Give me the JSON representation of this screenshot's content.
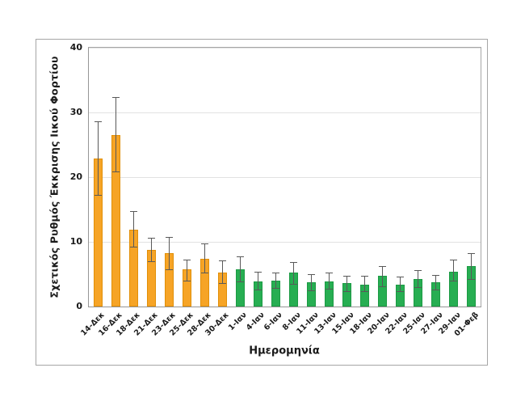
{
  "chart_data": {
    "type": "bar",
    "title": "",
    "xlabel": "Ημερομηνία",
    "ylabel": "Σχετικός Ρυθμός Έκκρισης Ιικού Φορτίου",
    "ylim": [
      0,
      40
    ],
    "yticks": [
      0,
      10,
      20,
      30,
      40
    ],
    "grid": "horizontal",
    "legend": "none",
    "categories": [
      "14-Δεκ",
      "16-Δεκ",
      "18-Δεκ",
      "21-Δεκ",
      "23-Δεκ",
      "25-Δεκ",
      "28-Δεκ",
      "30-Δεκ",
      "1-Ιαν",
      "4-Ιαν",
      "6-Ιαν",
      "8-Ιαν",
      "11-Ιαν",
      "13-Ιαν",
      "15-Ιαν",
      "18-Ιαν",
      "20-Ιαν",
      "22-Ιαν",
      "25-Ιαν",
      "27-Ιαν",
      "29-Ιαν",
      "01-Φεβ"
    ],
    "values": [
      22.9,
      26.5,
      11.9,
      8.8,
      8.2,
      5.7,
      7.4,
      5.3,
      5.8,
      3.9,
      4.0,
      5.2,
      3.7,
      3.9,
      3.6,
      3.4,
      4.7,
      3.4,
      4.3,
      3.7,
      5.4,
      6.2
    ],
    "error_low": [
      17.2,
      20.9,
      9.2,
      7.0,
      5.7,
      4.0,
      5.3,
      3.6,
      3.9,
      2.6,
      2.9,
      3.5,
      2.5,
      2.7,
      2.4,
      2.4,
      3.1,
      2.4,
      3.0,
      2.6,
      4.0,
      4.3
    ],
    "error_high": [
      28.6,
      32.4,
      14.8,
      10.6,
      10.8,
      7.3,
      9.7,
      7.1,
      7.8,
      5.4,
      5.2,
      6.9,
      5.0,
      5.3,
      4.8,
      4.7,
      6.3,
      4.6,
      5.6,
      4.9,
      7.2,
      8.3
    ],
    "color_groups": [
      "dec",
      "dec",
      "dec",
      "dec",
      "dec",
      "dec",
      "dec",
      "dec",
      "jan",
      "jan",
      "jan",
      "jan",
      "jan",
      "jan",
      "jan",
      "jan",
      "jan",
      "jan",
      "jan",
      "jan",
      "jan",
      "jan"
    ],
    "colors": {
      "dec": "#F6A426",
      "dec_edge": "#E18F07",
      "jan": "#27AE52",
      "jan_edge": "#1B9A43",
      "error": "#595959",
      "gridline": "#E2E2E2",
      "axis": "#969696",
      "frame": "#A6A6A6",
      "text": "#1A1A1A"
    }
  }
}
